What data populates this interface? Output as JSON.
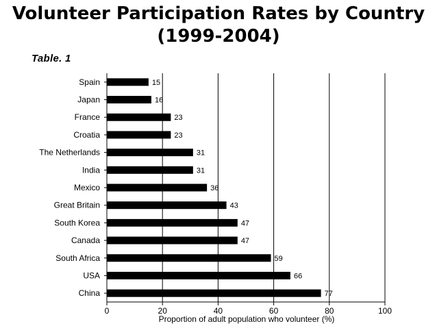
{
  "slide": {
    "title_line1": "Volunteer Participation Rates by Country",
    "title_line2": "(1999-2004)",
    "table_label": "Table. 1"
  },
  "chart_data": {
    "type": "bar",
    "orientation": "horizontal",
    "categories": [
      "Spain",
      "Japan",
      "France",
      "Croatia",
      "The Netherlands",
      "India",
      "Mexico",
      "Great Britain",
      "South Korea",
      "Canada",
      "South Africa",
      "USA",
      "China"
    ],
    "values": [
      15,
      16,
      23,
      23,
      31,
      31,
      36,
      43,
      47,
      47,
      59,
      66,
      77
    ],
    "xlabel": "Proportion of adult population who volunteer (%)",
    "ylabel": "",
    "xlim": [
      0,
      100
    ],
    "xticks": [
      0,
      20,
      40,
      60,
      80,
      100
    ],
    "grid": "vertical",
    "bar_color": "#000000",
    "data_labels": true
  }
}
